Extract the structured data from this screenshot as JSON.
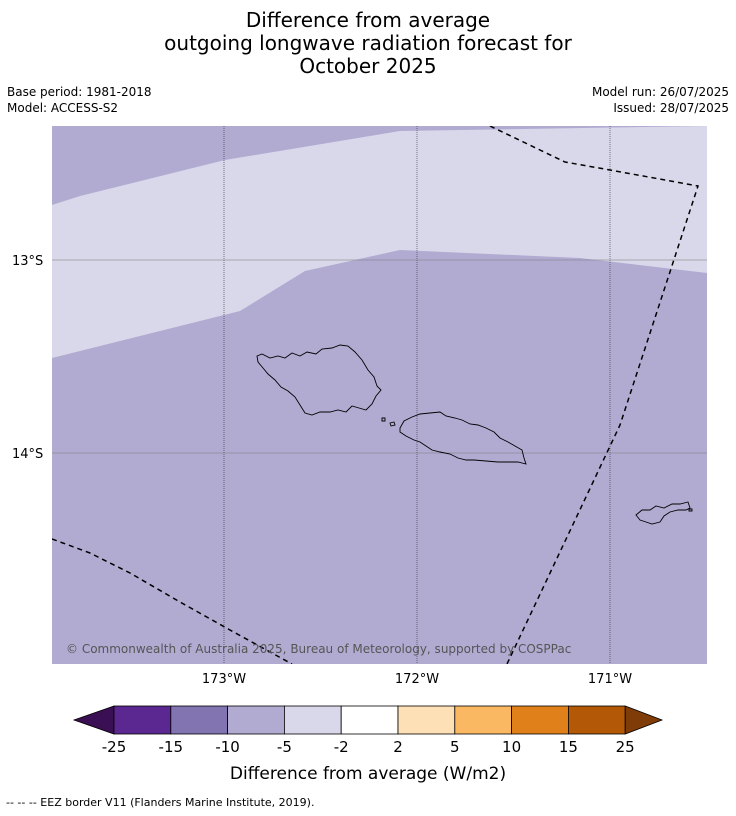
{
  "title": {
    "line1": "Difference from average",
    "line2": "outgoing longwave radiation forecast for",
    "line3": "October 2025"
  },
  "meta": {
    "base_period": "Base period: 1981-2018",
    "model": "Model: ACCESS-S2",
    "model_run": "Model run: 26/07/2025",
    "issued": "Issued: 28/07/2025"
  },
  "map": {
    "lat_labels": [
      "13°S",
      "14°S"
    ],
    "lon_labels": [
      "173°W",
      "172°W",
      "171°W"
    ],
    "copyright": "© Commonwealth of Australia 2025, Bureau of Meteorology, supported by COSPPac",
    "colors": {
      "anomaly_minus_5_to_minus_2": "#d8d8ea",
      "anomaly_minus_10_to_minus_5": "#b1abd2"
    }
  },
  "colorbar": {
    "ticks": [
      "-25",
      "-15",
      "-10",
      "-5",
      "-2",
      "2",
      "5",
      "10",
      "15",
      "25"
    ],
    "colors": [
      "#3b0f54",
      "#5b2891",
      "#8273b1",
      "#b1abd2",
      "#d8d8ea",
      "#ffffff",
      "#fde0b5",
      "#fbb863",
      "#e0801a",
      "#b35806",
      "#7f3b08"
    ],
    "label": "Difference from average (W/m2)"
  },
  "footer": {
    "legend": "--  --  -- EEZ border V11 (Flanders Marine Institute, 2019)."
  }
}
